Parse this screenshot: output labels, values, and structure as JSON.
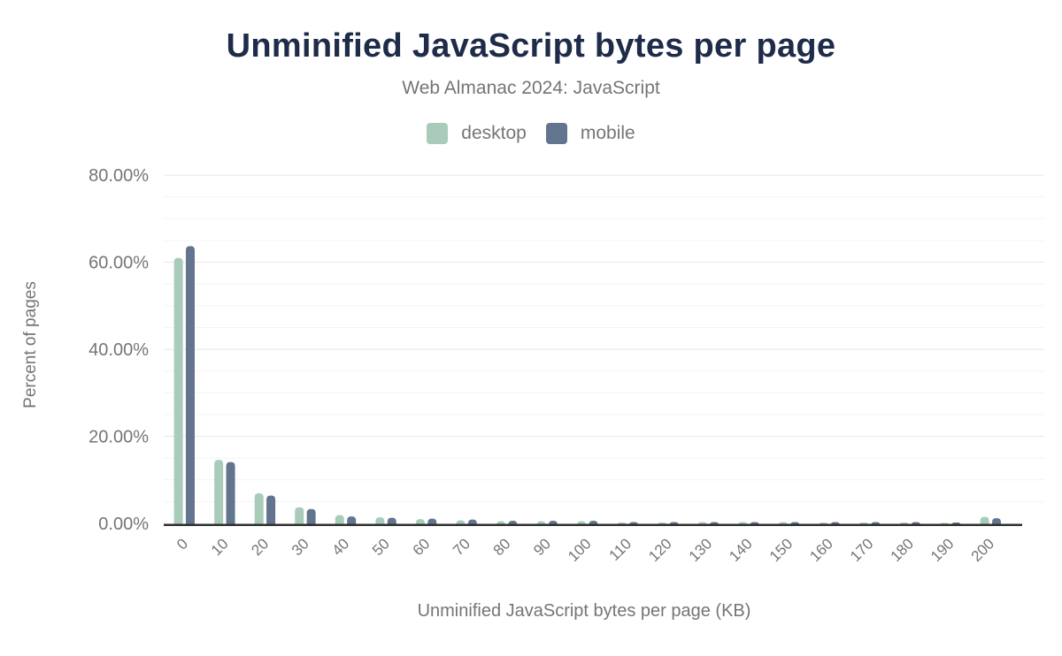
{
  "chart_data": {
    "type": "bar",
    "title": "Unminified JavaScript bytes per page",
    "subtitle": "Web Almanac 2024: JavaScript",
    "xlabel": "Unminified JavaScript bytes per page (KB)",
    "ylabel": "Percent of pages",
    "categories": [
      "0",
      "10",
      "20",
      "30",
      "40",
      "50",
      "60",
      "70",
      "80",
      "90",
      "100",
      "110",
      "120",
      "130",
      "140",
      "150",
      "160",
      "170",
      "180",
      "190",
      "200"
    ],
    "series": [
      {
        "name": "desktop",
        "color": "#a8ccb9",
        "values": [
          61.0,
          14.6,
          6.9,
          3.7,
          1.9,
          1.4,
          1.0,
          0.7,
          0.5,
          0.5,
          0.5,
          0.2,
          0.2,
          0.3,
          0.3,
          0.3,
          0.2,
          0.2,
          0.2,
          0.1,
          1.5
        ]
      },
      {
        "name": "mobile",
        "color": "#62748e",
        "values": [
          63.7,
          14.1,
          6.4,
          3.3,
          1.6,
          1.3,
          1.1,
          0.9,
          0.6,
          0.6,
          0.6,
          0.3,
          0.3,
          0.3,
          0.3,
          0.3,
          0.3,
          0.3,
          0.3,
          0.2,
          1.2
        ]
      }
    ],
    "y_tick_labels": [
      "0.00%",
      "20.00%",
      "40.00%",
      "60.00%",
      "80.00%"
    ],
    "ylim": [
      0,
      80
    ],
    "grid": "horizontal, major every 20%, faint minor lines",
    "legend_position": "top-center"
  },
  "colors": {
    "title": "#1e2b49",
    "text_muted": "#757575",
    "axis_line": "#2f2f2f",
    "grid_major": "#e7e7e7",
    "grid_minor": "#f4f4f4",
    "background": "#ffffff",
    "desktop": "#a8ccb9",
    "mobile": "#62748e"
  }
}
